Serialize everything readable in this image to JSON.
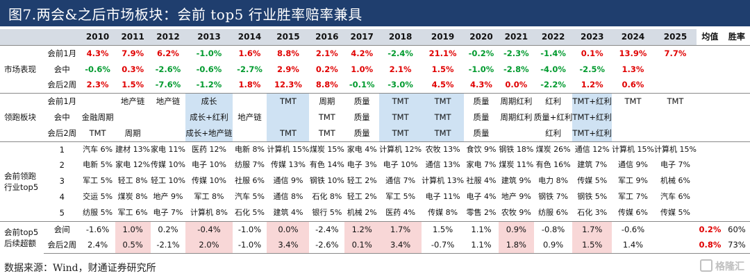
{
  "title": "图7.两会&之后市场板块：会前 top5 行业胜率赔率兼具",
  "source": "数据来源：Wind，财通证券研究所",
  "watermark": "格隆汇",
  "header": [
    "",
    "",
    "2010",
    "2011",
    "2012",
    "2013",
    "2014",
    "2015",
    "2016",
    "2017",
    "2018",
    "2019",
    "2020",
    "2021",
    "2022",
    "2023",
    "2024",
    "2025",
    "均值",
    "胜率"
  ],
  "sections": [
    {
      "label": "市场表现",
      "type": "perf",
      "rows": [
        {
          "sub": "会前1月",
          "values": [
            "4.3%",
            "7.9%",
            "6.2%",
            "-1.0%",
            "1.6%",
            "8.8%",
            "2.1%",
            "4.2%",
            "-2.4%",
            "21.1%",
            "-0.2%",
            "-2.3%",
            "-1.4%",
            "0.1%",
            "13.9%",
            "7.7%"
          ]
        },
        {
          "sub": "会中",
          "values": [
            "-0.6%",
            "0.3%",
            "-2.6%",
            "-0.6%",
            "-2.7%",
            "2.9%",
            "0.2%",
            "1.0%",
            "2.1%",
            "1.5%",
            "-1.0%",
            "-2.8%",
            "-4.0%",
            "-2.5%",
            "1.3%",
            ""
          ]
        },
        {
          "sub": "会后2周",
          "values": [
            "2.3%",
            "1.5%",
            "-7.6%",
            "-1.2%",
            "1.8%",
            "12.3%",
            "8.8%",
            "-0.1%",
            "-3.0%",
            "4.5%",
            "4.3%",
            "0.0%",
            "-2.2%",
            "1.2%",
            "0.6%",
            ""
          ]
        }
      ]
    },
    {
      "label": "领跑板块",
      "type": "lead",
      "rows": [
        {
          "sub": "会前1月",
          "values": [
            "",
            "地产链",
            "地产链",
            "成长",
            "",
            "TMT",
            "周期",
            "质量",
            "TMT",
            "TMT",
            "质量",
            "周期红利",
            "红利",
            "TMT+红利",
            "TMT",
            "TMT"
          ]
        },
        {
          "sub": "会中",
          "values": [
            "金融周期",
            "",
            "",
            "成长+红利",
            "地产链",
            "",
            "TMT",
            "质量",
            "TMT",
            "TMT",
            "质量",
            "周期红利",
            "质量+红利",
            "TMT+红利",
            "",
            ""
          ]
        },
        {
          "sub": "会后2周",
          "values": [
            "TMT",
            "周期",
            "",
            "成长+地产链",
            "",
            "TMT",
            "TMT",
            "质量",
            "TMT",
            "TMT",
            "质量",
            "",
            "红利",
            "TMT+红利",
            "",
            ""
          ]
        }
      ]
    },
    {
      "label": "会前领跑行业top5",
      "type": "ind",
      "rows": [
        {
          "sub": "1",
          "values": [
            "汽车 6%",
            "建材 13%",
            "家电 11%",
            "医药 12%",
            "电新 8%",
            "计算机 15%",
            "煤炭 15%",
            "家电 4%",
            "计算机 12%",
            "农牧 13%",
            "食饮 9%",
            "钢铁 18%",
            "煤炭 26%",
            "通信 12%",
            "计算机 15%",
            "计算机 15%"
          ]
        },
        {
          "sub": "2",
          "values": [
            "电新 5%",
            "家电 12%",
            "传媒 10%",
            "电子 10%",
            "纺服 7%",
            "传媒 13%",
            "有色 14%",
            "电子 3%",
            "电子 10%",
            "通信 13%",
            "家电 7%",
            "煤炭 11%",
            "有色 16%",
            "建筑 7%",
            "通信 9%",
            "电子 7%"
          ]
        },
        {
          "sub": "3",
          "values": [
            "军工 5%",
            "轻工 8%",
            "轻工 10%",
            "传媒 10%",
            "社服 6%",
            "通信 9%",
            "钢铁 10%",
            "轻工 2%",
            "通信 7%",
            "计算机 13%",
            "社服 4%",
            "建筑 9%",
            "电力 8%",
            "传媒 5%",
            "军工 9%",
            "机械 6%"
          ]
        },
        {
          "sub": "4",
          "values": [
            "交运 5%",
            "煤炭 8%",
            "地产 9%",
            "军工 8%",
            "汽车 5%",
            "通信 8%",
            "石化 8%",
            "轻工 2%",
            "军工 5%",
            "电子 11%",
            "电子 4%",
            "地产 9%",
            "钢铁 7%",
            "钢铁 5%",
            "军工 7%",
            "汽车 6%"
          ]
        },
        {
          "sub": "5",
          "values": [
            "纺服 5%",
            "军工 6%",
            "电子 7%",
            "计算机 8%",
            "石化 5%",
            "建筑 4%",
            "银行 5%",
            "机械 2%",
            "医药 4%",
            "传媒 8%",
            "零售 2%",
            "农牧 9%",
            "纺服 6%",
            "石化 3%",
            "传媒 6%",
            "传媒 5%"
          ]
        }
      ]
    },
    {
      "label": "会前top5后续超额",
      "type": "excess",
      "rows": [
        {
          "sub": "会间",
          "values": [
            "-1.6%",
            "1.0%",
            "0.2%",
            "-0.4%",
            "-1.0%",
            "0.0%",
            "-2.4%",
            "1.2%",
            "1.7%",
            "1.5%",
            "1.1%",
            "0.9%",
            "-0.8%",
            "1.7%",
            "-0.6%",
            ""
          ],
          "avg": "0.2%",
          "win": "60%"
        },
        {
          "sub": "会后2周",
          "values": [
            "2.4%",
            "0.5%",
            "-2.1%",
            "2.0%",
            "-1.0%",
            "3.4%",
            "-2.6%",
            "0.1%",
            "3.4%",
            "-0.7%",
            "1.1%",
            "1.8%",
            "0.9%",
            "1.5%",
            "1.4%",
            ""
          ],
          "avg": "0.8%",
          "win": "73%"
        }
      ]
    }
  ]
}
